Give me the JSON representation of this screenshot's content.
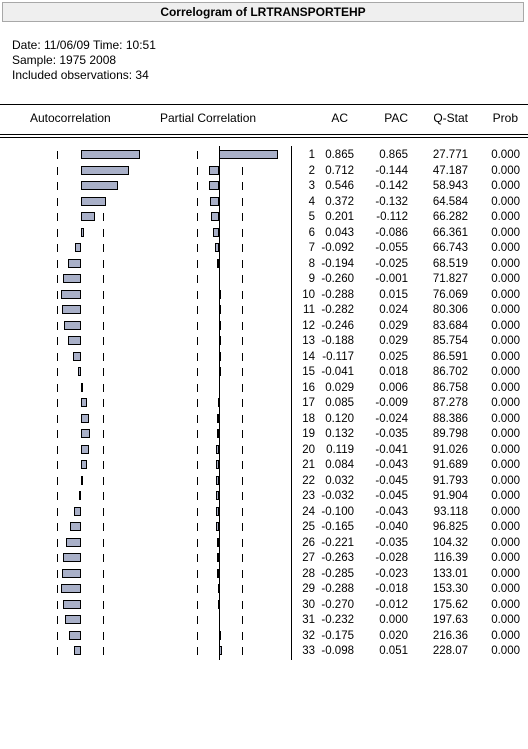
{
  "window": {
    "title": "Correlogram of LRTRANSPORTEHP"
  },
  "info": {
    "date_line": "Date: 11/06/09   Time: 10:51",
    "sample_line": "Sample: 1975 2008",
    "obs_line": "Included observations: 34"
  },
  "headers": {
    "autocorrelation": "Autocorrelation",
    "partial_correlation": "Partial Correlation",
    "ac": "AC",
    "pac": "PAC",
    "qstat": "Q-Stat",
    "prob": "Prob"
  },
  "chart_data": {
    "type": "table",
    "columns": [
      "",
      "AC",
      "PAC",
      "Q-Stat",
      "Prob"
    ],
    "rows": [
      {
        "lag": "1",
        "ac": "0.865",
        "pac": "0.865",
        "q": "27.771",
        "prob": "0.000"
      },
      {
        "lag": "2",
        "ac": "0.712",
        "pac": "-0.144",
        "q": "47.187",
        "prob": "0.000"
      },
      {
        "lag": "3",
        "ac": "0.546",
        "pac": "-0.142",
        "q": "58.943",
        "prob": "0.000"
      },
      {
        "lag": "4",
        "ac": "0.372",
        "pac": "-0.132",
        "q": "64.584",
        "prob": "0.000"
      },
      {
        "lag": "5",
        "ac": "0.201",
        "pac": "-0.112",
        "q": "66.282",
        "prob": "0.000"
      },
      {
        "lag": "6",
        "ac": "0.043",
        "pac": "-0.086",
        "q": "66.361",
        "prob": "0.000"
      },
      {
        "lag": "7",
        "ac": "-0.092",
        "pac": "-0.055",
        "q": "66.743",
        "prob": "0.000"
      },
      {
        "lag": "8",
        "ac": "-0.194",
        "pac": "-0.025",
        "q": "68.519",
        "prob": "0.000"
      },
      {
        "lag": "9",
        "ac": "-0.260",
        "pac": "-0.001",
        "q": "71.827",
        "prob": "0.000"
      },
      {
        "lag": "10",
        "ac": "-0.288",
        "pac": "0.015",
        "q": "76.069",
        "prob": "0.000"
      },
      {
        "lag": "11",
        "ac": "-0.282",
        "pac": "0.024",
        "q": "80.306",
        "prob": "0.000"
      },
      {
        "lag": "12",
        "ac": "-0.246",
        "pac": "0.029",
        "q": "83.684",
        "prob": "0.000"
      },
      {
        "lag": "13",
        "ac": "-0.188",
        "pac": "0.029",
        "q": "85.754",
        "prob": "0.000"
      },
      {
        "lag": "14",
        "ac": "-0.117",
        "pac": "0.025",
        "q": "86.591",
        "prob": "0.000"
      },
      {
        "lag": "15",
        "ac": "-0.041",
        "pac": "0.018",
        "q": "86.702",
        "prob": "0.000"
      },
      {
        "lag": "16",
        "ac": "0.029",
        "pac": "0.006",
        "q": "86.758",
        "prob": "0.000"
      },
      {
        "lag": "17",
        "ac": "0.085",
        "pac": "-0.009",
        "q": "87.278",
        "prob": "0.000"
      },
      {
        "lag": "18",
        "ac": "0.120",
        "pac": "-0.024",
        "q": "88.386",
        "prob": "0.000"
      },
      {
        "lag": "19",
        "ac": "0.132",
        "pac": "-0.035",
        "q": "89.798",
        "prob": "0.000"
      },
      {
        "lag": "20",
        "ac": "0.119",
        "pac": "-0.041",
        "q": "91.026",
        "prob": "0.000"
      },
      {
        "lag": "21",
        "ac": "0.084",
        "pac": "-0.043",
        "q": "91.689",
        "prob": "0.000"
      },
      {
        "lag": "22",
        "ac": "0.032",
        "pac": "-0.045",
        "q": "91.793",
        "prob": "0.000"
      },
      {
        "lag": "23",
        "ac": "-0.032",
        "pac": "-0.045",
        "q": "91.904",
        "prob": "0.000"
      },
      {
        "lag": "24",
        "ac": "-0.100",
        "pac": "-0.043",
        "q": "93.118",
        "prob": "0.000"
      },
      {
        "lag": "25",
        "ac": "-0.165",
        "pac": "-0.040",
        "q": "96.825",
        "prob": "0.000"
      },
      {
        "lag": "26",
        "ac": "-0.221",
        "pac": "-0.035",
        "q": "104.32",
        "prob": "0.000"
      },
      {
        "lag": "27",
        "ac": "-0.263",
        "pac": "-0.028",
        "q": "116.39",
        "prob": "0.000"
      },
      {
        "lag": "28",
        "ac": "-0.285",
        "pac": "-0.023",
        "q": "133.01",
        "prob": "0.000"
      },
      {
        "lag": "29",
        "ac": "-0.288",
        "pac": "-0.018",
        "q": "153.30",
        "prob": "0.000"
      },
      {
        "lag": "30",
        "ac": "-0.270",
        "pac": "-0.012",
        "q": "175.62",
        "prob": "0.000"
      },
      {
        "lag": "31",
        "ac": "-0.232",
        "pac": "0.000",
        "q": "197.63",
        "prob": "0.000"
      },
      {
        "lag": "32",
        "ac": "-0.175",
        "pac": "0.020",
        "q": "216.36",
        "prob": "0.000"
      },
      {
        "lag": "33",
        "ac": "-0.098",
        "pac": "0.051",
        "q": "228.07",
        "prob": "0.000"
      }
    ]
  },
  "colors": {
    "bar_fill": "#a9b0c8",
    "title_bar": "#efefef"
  }
}
